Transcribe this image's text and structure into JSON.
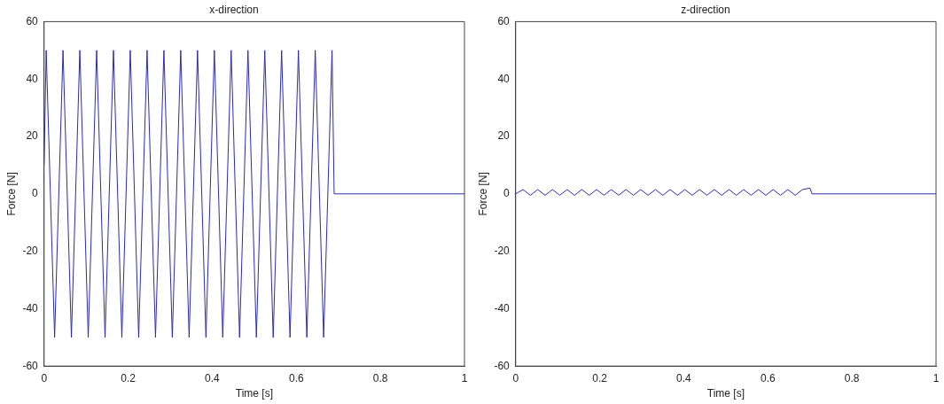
{
  "chart_data": [
    {
      "type": "line",
      "title": "x-direction",
      "xlabel": "Time [s]",
      "ylabel": "Force [N]",
      "xlim": [
        0,
        1
      ],
      "xticks": [
        0,
        0.2,
        0.4,
        0.6,
        0.8,
        1
      ],
      "ylim": [
        -60,
        60
      ],
      "yticks": [
        -60,
        -40,
        -20,
        0,
        20,
        40,
        60
      ],
      "grid": false,
      "legend": false,
      "marker": "none",
      "line_style": "solid",
      "series": [
        {
          "color": "#2b2bb0",
          "x": [
            0,
            0.005,
            0.025,
            0.045,
            0.065,
            0.085,
            0.105,
            0.125,
            0.145,
            0.165,
            0.185,
            0.205,
            0.225,
            0.245,
            0.265,
            0.285,
            0.305,
            0.325,
            0.345,
            0.365,
            0.385,
            0.405,
            0.425,
            0.445,
            0.465,
            0.485,
            0.505,
            0.525,
            0.545,
            0.565,
            0.585,
            0.605,
            0.625,
            0.645,
            0.665,
            0.685,
            0.69,
            1
          ],
          "values": [
            10,
            50,
            -50,
            50,
            -50,
            50,
            -50,
            50,
            -50,
            50,
            -50,
            50,
            -50,
            50,
            -50,
            50,
            -50,
            50,
            -50,
            50,
            -50,
            50,
            -50,
            50,
            -50,
            50,
            -50,
            50,
            -50,
            50,
            -50,
            50,
            -50,
            50,
            -50,
            50,
            0,
            0
          ]
        }
      ]
    },
    {
      "type": "line",
      "title": "z-direction",
      "xlabel": "Time [s]",
      "ylabel": "Force [N]",
      "xlim": [
        0,
        1
      ],
      "xticks": [
        0,
        0.2,
        0.4,
        0.6,
        0.8,
        1
      ],
      "ylim": [
        -60,
        60
      ],
      "yticks": [
        -60,
        -40,
        -20,
        0,
        20,
        40,
        60
      ],
      "grid": false,
      "legend": false,
      "marker": "none",
      "line_style": "solid",
      "series": [
        {
          "color": "#2b2bb0",
          "x": [
            0,
            0.0175,
            0.035,
            0.0525,
            0.07,
            0.0875,
            0.105,
            0.1225,
            0.14,
            0.1575,
            0.175,
            0.1925,
            0.21,
            0.2275,
            0.245,
            0.2625,
            0.28,
            0.2975,
            0.315,
            0.3325,
            0.35,
            0.3675,
            0.385,
            0.4025,
            0.42,
            0.4375,
            0.455,
            0.4725,
            0.49,
            0.5075,
            0.525,
            0.5425,
            0.56,
            0.5775,
            0.595,
            0.6125,
            0.63,
            0.6475,
            0.665,
            0.6825,
            0.7,
            0.705,
            1
          ],
          "values": [
            0,
            1.5,
            -0.5,
            1.5,
            -0.5,
            1.5,
            -0.5,
            1.5,
            -0.5,
            1.5,
            -0.5,
            1.5,
            -0.5,
            1.5,
            -0.5,
            1.5,
            -0.5,
            1.5,
            -0.5,
            1.5,
            -0.5,
            1.5,
            -0.5,
            1.5,
            -0.5,
            1.5,
            -0.5,
            1.5,
            -0.5,
            1.5,
            -0.5,
            1.5,
            -0.5,
            1.5,
            -0.5,
            1.5,
            -0.5,
            1.5,
            -0.5,
            1.5,
            2,
            0,
            0
          ]
        }
      ]
    }
  ]
}
